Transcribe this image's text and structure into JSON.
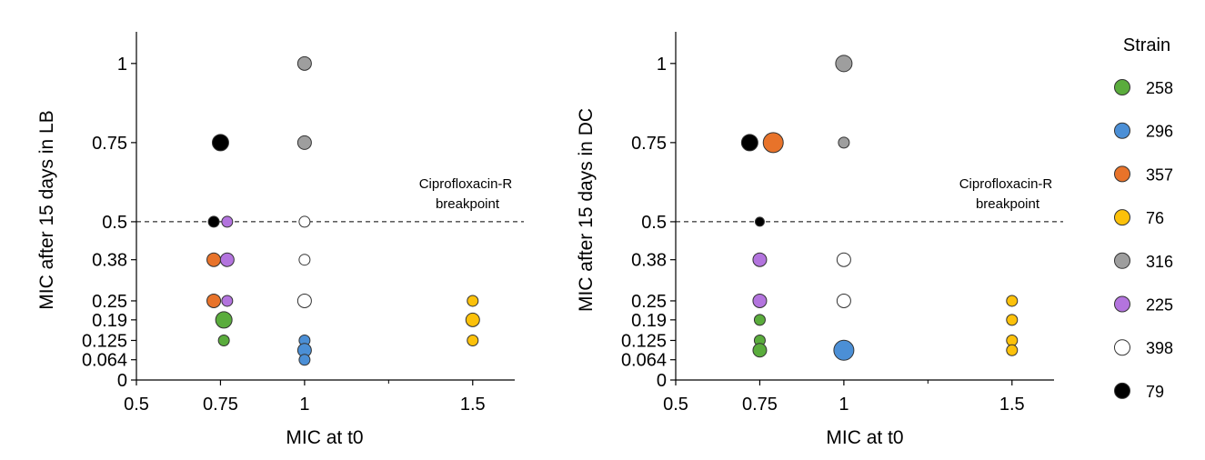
{
  "chart_data": [
    {
      "type": "scatter",
      "title": "",
      "xlabel": "MIC at t0",
      "ylabel": "MIC after 15 days in LB",
      "x_ticks": [
        0.5,
        0.75,
        1,
        1.5
      ],
      "x_tick_labels": [
        "0.5",
        "0.75",
        "1",
        "1.5"
      ],
      "y_ticks": [
        0,
        0.064,
        0.125,
        0.19,
        0.25,
        0.38,
        0.5,
        0.75,
        1
      ],
      "y_tick_labels": [
        "0",
        "0.064",
        "0.125",
        "0.19",
        "0.25",
        "0.38",
        "0.5",
        "0.75",
        "1"
      ],
      "xlim": [
        0.5,
        1.625
      ],
      "ylim": [
        0,
        1.1
      ],
      "breakpoint": {
        "y": 0.5,
        "label_line1": "Ciprofloxacin-R",
        "label_line2": "breakpoint"
      },
      "points": [
        {
          "strain": "79",
          "x": 0.75,
          "y": 0.75,
          "size": 3
        },
        {
          "strain": "316",
          "x": 1,
          "y": 1,
          "size": 2
        },
        {
          "strain": "316",
          "x": 1,
          "y": 0.75,
          "size": 2
        },
        {
          "strain": "79",
          "x": 0.73,
          "y": 0.5,
          "size": 1
        },
        {
          "strain": "225",
          "x": 0.77,
          "y": 0.5,
          "size": 1
        },
        {
          "strain": "398",
          "x": 1,
          "y": 0.5,
          "size": 1
        },
        {
          "strain": "357",
          "x": 0.73,
          "y": 0.38,
          "size": 2
        },
        {
          "strain": "225",
          "x": 0.77,
          "y": 0.38,
          "size": 2
        },
        {
          "strain": "398",
          "x": 1,
          "y": 0.38,
          "size": 1
        },
        {
          "strain": "357",
          "x": 0.73,
          "y": 0.25,
          "size": 2
        },
        {
          "strain": "225",
          "x": 0.77,
          "y": 0.25,
          "size": 1
        },
        {
          "strain": "398",
          "x": 1,
          "y": 0.25,
          "size": 2
        },
        {
          "strain": "76",
          "x": 1.5,
          "y": 0.25,
          "size": 1
        },
        {
          "strain": "258",
          "x": 0.76,
          "y": 0.19,
          "size": 3
        },
        {
          "strain": "76",
          "x": 1.5,
          "y": 0.19,
          "size": 2
        },
        {
          "strain": "258",
          "x": 0.76,
          "y": 0.125,
          "size": 1
        },
        {
          "strain": "296",
          "x": 1,
          "y": 0.125,
          "size": 1
        },
        {
          "strain": "76",
          "x": 1.5,
          "y": 0.125,
          "size": 1
        },
        {
          "strain": "296",
          "x": 1,
          "y": 0.094,
          "size": 2
        },
        {
          "strain": "296",
          "x": 1,
          "y": 0.064,
          "size": 1
        }
      ]
    },
    {
      "type": "scatter",
      "title": "",
      "xlabel": "MIC at t0",
      "ylabel": "MIC after 15 days in DC",
      "x_ticks": [
        0.5,
        0.75,
        1,
        1.5
      ],
      "x_tick_labels": [
        "0.5",
        "0.75",
        "1",
        "1.5"
      ],
      "y_ticks": [
        0,
        0.064,
        0.125,
        0.19,
        0.25,
        0.38,
        0.5,
        0.75,
        1
      ],
      "y_tick_labels": [
        "0",
        "0.064",
        "0.125",
        "0.19",
        "0.25",
        "0.38",
        "0.5",
        "0.75",
        "1"
      ],
      "xlim": [
        0.5,
        1.625
      ],
      "ylim": [
        0,
        1.1
      ],
      "breakpoint": {
        "y": 0.5,
        "label_line1": "Ciprofloxacin-R",
        "label_line2": "breakpoint"
      },
      "points": [
        {
          "strain": "316",
          "x": 1,
          "y": 1,
          "size": 3
        },
        {
          "strain": "79",
          "x": 0.72,
          "y": 0.75,
          "size": 3
        },
        {
          "strain": "357",
          "x": 0.79,
          "y": 0.75,
          "size": 4
        },
        {
          "strain": "316",
          "x": 1,
          "y": 0.75,
          "size": 1
        },
        {
          "strain": "79",
          "x": 0.75,
          "y": 0.5,
          "size": 0
        },
        {
          "strain": "225",
          "x": 0.75,
          "y": 0.38,
          "size": 2
        },
        {
          "strain": "398",
          "x": 1,
          "y": 0.38,
          "size": 2
        },
        {
          "strain": "225",
          "x": 0.75,
          "y": 0.25,
          "size": 2
        },
        {
          "strain": "398",
          "x": 1,
          "y": 0.25,
          "size": 2
        },
        {
          "strain": "76",
          "x": 1.5,
          "y": 0.25,
          "size": 1
        },
        {
          "strain": "258",
          "x": 0.75,
          "y": 0.19,
          "size": 1
        },
        {
          "strain": "76",
          "x": 1.5,
          "y": 0.19,
          "size": 1
        },
        {
          "strain": "258",
          "x": 0.75,
          "y": 0.125,
          "size": 1
        },
        {
          "strain": "76",
          "x": 1.5,
          "y": 0.125,
          "size": 1
        },
        {
          "strain": "258",
          "x": 0.75,
          "y": 0.094,
          "size": 2
        },
        {
          "strain": "296",
          "x": 1,
          "y": 0.094,
          "size": 4
        },
        {
          "strain": "76",
          "x": 1.5,
          "y": 0.094,
          "size": 1
        }
      ]
    }
  ],
  "legend": {
    "title": "Strain",
    "placement": "right",
    "items": [
      {
        "label": "258",
        "color": "#5aac3c"
      },
      {
        "label": "296",
        "color": "#4b8fd6"
      },
      {
        "label": "357",
        "color": "#e8732a"
      },
      {
        "label": "76",
        "color": "#fcc10a"
      },
      {
        "label": "316",
        "color": "#9e9e9e"
      },
      {
        "label": "225",
        "color": "#b374de"
      },
      {
        "label": "398",
        "color": "#ffffff"
      },
      {
        "label": "79",
        "color": "#000000"
      }
    ]
  }
}
